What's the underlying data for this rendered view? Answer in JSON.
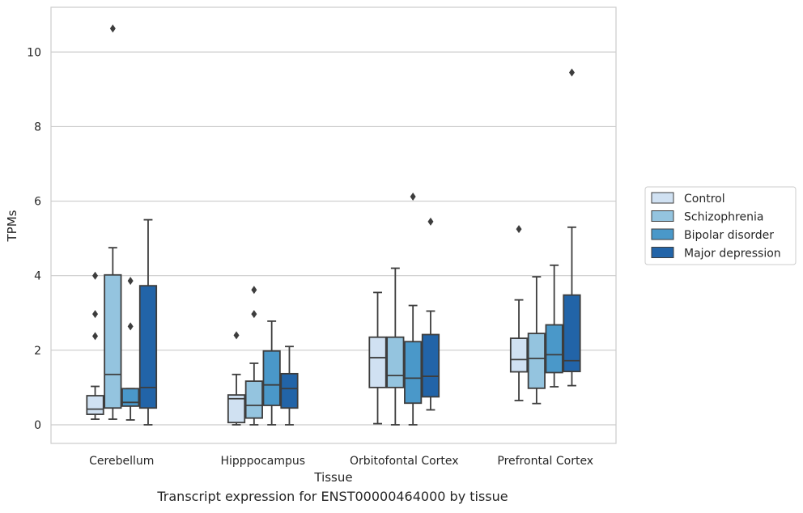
{
  "caption": "Transcript expression for ENST00000464000 by tissue",
  "chart_data": {
    "type": "box",
    "xlabel": "Tissue",
    "ylabel": "TPMs",
    "ylim": [
      -0.5,
      11.2
    ],
    "yticks": [
      0,
      2,
      4,
      6,
      8,
      10
    ],
    "grid": "horizontal",
    "legend_position": "right",
    "categories": [
      "Cerebellum",
      "Hipppocampus",
      "Orbitofontal Cortex",
      "Prefrontal Cortex"
    ],
    "series": [
      {
        "name": "Control",
        "color": "#d0e1f2",
        "boxes": [
          {
            "whislo": 0.15,
            "q1": 0.28,
            "med": 0.42,
            "q3": 0.78,
            "whishi": 1.03,
            "fliers": []
          },
          {
            "whislo": 0.0,
            "q1": 0.06,
            "med": 0.7,
            "q3": 0.8,
            "whishi": 1.35,
            "fliers": [
              2.4
            ]
          },
          {
            "whislo": 0.03,
            "q1": 1.0,
            "med": 1.8,
            "q3": 2.35,
            "whishi": 3.55,
            "fliers": []
          },
          {
            "whislo": 0.65,
            "q1": 1.42,
            "med": 1.75,
            "q3": 2.32,
            "whishi": 3.35,
            "fliers": [
              5.25
            ]
          }
        ]
      },
      {
        "name": "Schizophrenia",
        "color": "#94c4df",
        "boxes": [
          {
            "whislo": 0.15,
            "q1": 0.45,
            "med": 1.35,
            "q3": 4.02,
            "whishi": 4.75,
            "fliers": []
          },
          {
            "whislo": 0.0,
            "q1": 0.18,
            "med": 0.52,
            "q3": 1.17,
            "whishi": 1.65,
            "fliers": [
              2.97,
              3.62
            ]
          },
          {
            "whislo": 0.0,
            "q1": 1.0,
            "med": 1.32,
            "q3": 2.35,
            "whishi": 4.2,
            "fliers": []
          },
          {
            "whislo": 0.57,
            "q1": 0.98,
            "med": 1.78,
            "q3": 2.45,
            "whishi": 3.97,
            "fliers": []
          }
        ]
      },
      {
        "name": "Bipolar disorder",
        "color": "#4a98c9",
        "boxes": [
          {
            "whislo": 0.13,
            "q1": 0.5,
            "med": 0.6,
            "q3": 0.97,
            "whishi": 0.97,
            "fliers": [
              2.64,
              3.86
            ]
          },
          {
            "whislo": 0.0,
            "q1": 0.52,
            "med": 1.07,
            "q3": 1.98,
            "whishi": 2.78,
            "fliers": []
          },
          {
            "whislo": 0.0,
            "q1": 0.58,
            "med": 1.25,
            "q3": 2.23,
            "whishi": 3.2,
            "fliers": [
              6.12
            ]
          },
          {
            "whislo": 1.02,
            "q1": 1.4,
            "med": 1.88,
            "q3": 2.68,
            "whishi": 4.28,
            "fliers": []
          }
        ]
      },
      {
        "name": "Major depression",
        "color": "#2264a8",
        "boxes": [
          {
            "whislo": 0.0,
            "q1": 0.45,
            "med": 1.0,
            "q3": 3.73,
            "whishi": 5.5,
            "fliers": []
          },
          {
            "whislo": 0.0,
            "q1": 0.45,
            "med": 0.97,
            "q3": 1.37,
            "whishi": 2.1,
            "fliers": []
          },
          {
            "whislo": 0.4,
            "q1": 0.75,
            "med": 1.3,
            "q3": 2.42,
            "whishi": 3.05,
            "fliers": [
              5.45
            ]
          },
          {
            "whislo": 1.05,
            "q1": 1.43,
            "med": 1.72,
            "q3": 3.48,
            "whishi": 5.3,
            "fliers": [
              9.45
            ]
          }
        ]
      }
    ],
    "extra_fliers": [
      {
        "category": 0,
        "series": 0,
        "values": [
          2.38,
          2.97,
          4.0
        ]
      },
      {
        "category": 0,
        "series": 1,
        "values": [
          10.63
        ]
      }
    ]
  }
}
